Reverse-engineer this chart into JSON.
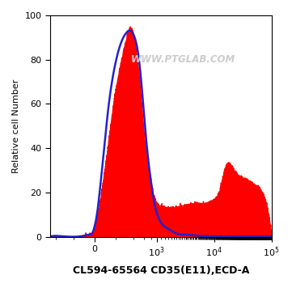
{
  "title": "CL594-65564 CD35(E11),ECD-A",
  "ylabel": "Relative cell Number",
  "watermark": "WWW.PTGLAB.COM",
  "ylim": [
    0,
    100
  ],
  "background_color": "#ffffff",
  "red_color": "#ff0000",
  "blue_color": "#2222cc",
  "watermark_color": "#cccccc",
  "linthresh": 300,
  "linscale": 0.5
}
